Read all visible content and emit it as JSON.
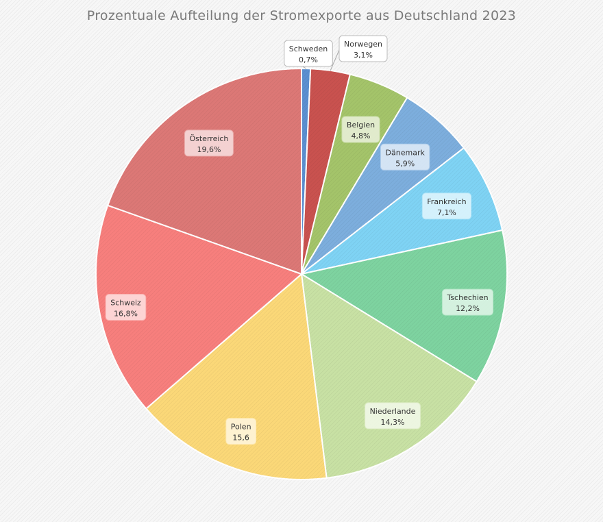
{
  "chart_data": {
    "type": "pie",
    "title": "Prozentuale Aufteilung der Stromexporte aus Deutschland 2023",
    "slices": [
      {
        "label": "Schweden",
        "value": 0.7,
        "value_label": "0,7%",
        "color": "#5b8fd0"
      },
      {
        "label": "Norwegen",
        "value": 3.1,
        "value_label": "3,1%",
        "color": "#c9524f"
      },
      {
        "label": "Belgien",
        "value": 4.8,
        "value_label": "4,8%",
        "color": "#a4c46a"
      },
      {
        "label": "Dänemark",
        "value": 5.9,
        "value_label": "5,9%",
        "color": "#7daedd"
      },
      {
        "label": "Frankreich",
        "value": 7.1,
        "value_label": "7,1%",
        "color": "#7fd3f4"
      },
      {
        "label": "Tschechien",
        "value": 12.2,
        "value_label": "12,2%",
        "color": "#7ed3a0"
      },
      {
        "label": "Niederlande",
        "value": 14.3,
        "value_label": "14,3%",
        "color": "#c8e1a4"
      },
      {
        "label": "Polen",
        "value": 15.6,
        "value_label": "15,6",
        "color": "#fbd878"
      },
      {
        "label": "Schweiz",
        "value": 16.8,
        "value_label": "16,8%",
        "color": "#f77f7d"
      },
      {
        "label": "Österreich",
        "value": 19.6,
        "value_label": "19,6%",
        "color": "#dc7876"
      }
    ]
  }
}
